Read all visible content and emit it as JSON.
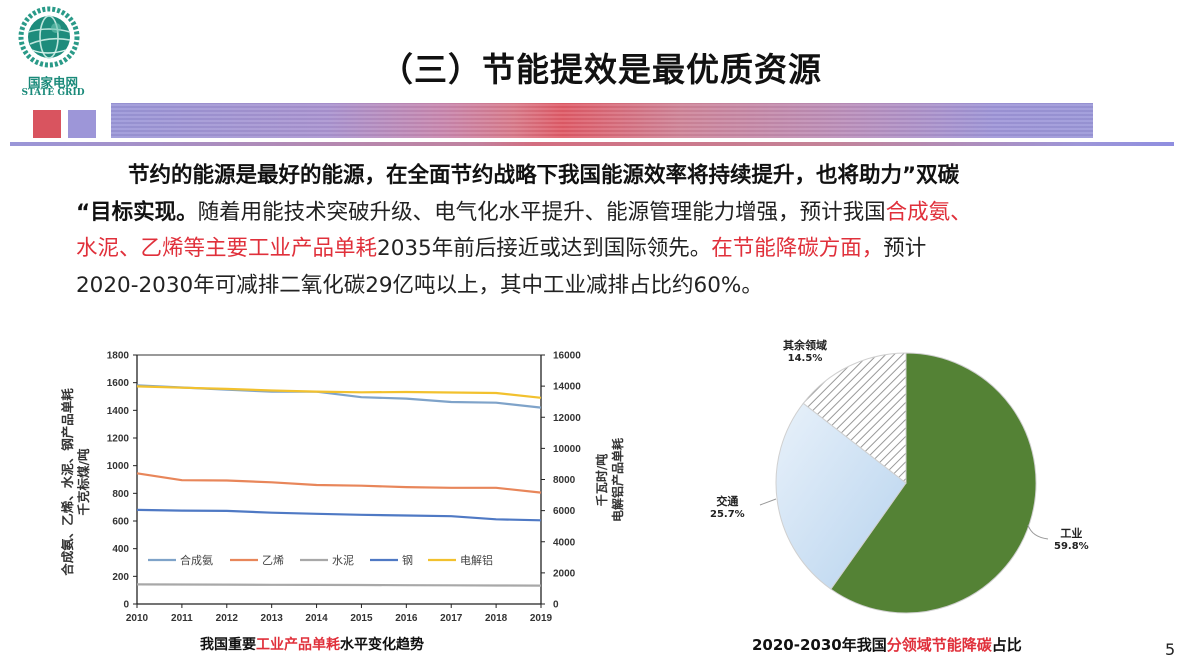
{
  "logo": {
    "cn": "国家电网",
    "en": "STATE GRID",
    "color": "#1a8a7a"
  },
  "slide": {
    "title": "（三）节能提效是最优质资源",
    "page_number": "5"
  },
  "decor": {
    "square_colors": [
      "#d9545f",
      "#9d96d8"
    ]
  },
  "paragraph": {
    "l1_bold": "节约的能源是最好的能源，在全面节约战略下我国能源效率将持续提升，也将助力”双碳",
    "l2_bold": "“目标实现。",
    "l2_normal": "随着用能技术突破升级、电气化水平提升、能源管理能力增强，预计我国",
    "l2_red": "合成氨、",
    "l3_red": "水泥、乙烯等主要工业产品单耗",
    "l3_normal": "2035年前后接近或达到国际领先。",
    "l3_red2": "在节能降碳方面，",
    "l3_normal2": "预计",
    "l4_normal": "2020-2030年可减排二氧化碳29亿吨以上，其中工业减排占比约60%。",
    "highlight_color": "#e0303b"
  },
  "captions": {
    "left_pre": "我国重要",
    "left_red": "工业产品单耗",
    "left_post": "水平变化趋势",
    "right_pre": "2020-2030年我国",
    "right_red": "分领域节能降碳",
    "right_post": "占比"
  },
  "chart_data": [
    {
      "type": "line",
      "title": "我国重要工业产品单耗水平变化趋势",
      "xlabel": "",
      "ylabel": "合成氨、乙烯、水泥、钢产品单耗 千克标煤/吨",
      "ylabel_right": "电解铝产品单耗 千瓦时/吨",
      "x": [
        2010,
        2011,
        2012,
        2013,
        2014,
        2015,
        2016,
        2017,
        2018,
        2019
      ],
      "ylim": [
        0,
        1800
      ],
      "ylim_right": [
        0,
        16000
      ],
      "yticks": [
        0,
        200,
        400,
        600,
        800,
        1000,
        1200,
        1400,
        1600,
        1800
      ],
      "yticks_right": [
        0,
        2000,
        4000,
        6000,
        8000,
        10000,
        12000,
        14000,
        16000
      ],
      "grid": false,
      "legend_position": "inside-bottom",
      "series": [
        {
          "name": "合成氨",
          "axis": "left",
          "color": "#7fa3c9",
          "values": [
            1580,
            1565,
            1550,
            1535,
            1535,
            1495,
            1485,
            1460,
            1455,
            1420
          ]
        },
        {
          "name": "乙烯",
          "axis": "left",
          "color": "#e8865a",
          "values": [
            945,
            895,
            893,
            880,
            860,
            855,
            845,
            840,
            840,
            805
          ]
        },
        {
          "name": "水泥",
          "axis": "left",
          "color": "#a8a8a8",
          "values": [
            142,
            141,
            140,
            139,
            138,
            137,
            136,
            135,
            134,
            133
          ]
        },
        {
          "name": "钢",
          "axis": "left",
          "color": "#4f79c4",
          "values": [
            680,
            675,
            673,
            660,
            652,
            645,
            640,
            635,
            612,
            605
          ]
        },
        {
          "name": "电解铝",
          "axis": "right",
          "color": "#f2c12e",
          "values": [
            13980,
            13900,
            13820,
            13720,
            13650,
            13600,
            13620,
            13590,
            13560,
            13250
          ]
        }
      ]
    },
    {
      "type": "pie",
      "title": "2020-2030年我国分领域节能降碳占比",
      "categories": [
        "工业",
        "交通",
        "其余领域"
      ],
      "values": [
        59.8,
        25.7,
        14.5
      ],
      "labels": [
        "59.8%",
        "25.7%",
        "14.5%"
      ],
      "colors": [
        "#548235",
        "#c5dcf0",
        "hatched-grey"
      ]
    }
  ]
}
